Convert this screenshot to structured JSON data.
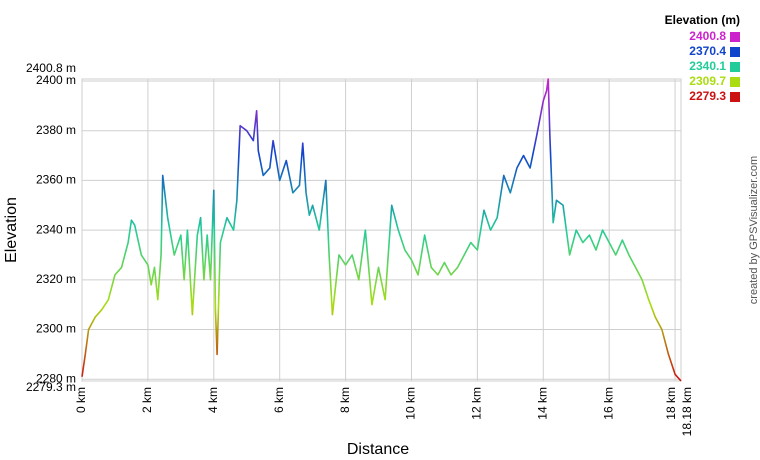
{
  "chart_data": {
    "type": "line",
    "x_label": "Distance",
    "y_label": "Elevation",
    "legend_title": "Elevation (m)",
    "credit": "created by GPSVisualizer.com",
    "grid": true,
    "xlim": [
      0,
      18.18
    ],
    "ylim": [
      2279.3,
      2400.8
    ],
    "xticks": [
      {
        "value": 0,
        "label": "0 km"
      },
      {
        "value": 2,
        "label": "2 km"
      },
      {
        "value": 4,
        "label": "4 km"
      },
      {
        "value": 6,
        "label": "6 km"
      },
      {
        "value": 8,
        "label": "8 km"
      },
      {
        "value": 10,
        "label": "10 km"
      },
      {
        "value": 12,
        "label": "12 km"
      },
      {
        "value": 14,
        "label": "14 km"
      },
      {
        "value": 16,
        "label": "16 km"
      },
      {
        "value": 18,
        "label": "18 km"
      },
      {
        "value": 18.18,
        "label": "18.18 km"
      }
    ],
    "yticks": [
      {
        "value": 2279.3,
        "label": "2279.3 m"
      },
      {
        "value": 2280,
        "label": "2280 m"
      },
      {
        "value": 2300,
        "label": "2300 m"
      },
      {
        "value": 2320,
        "label": "2320 m"
      },
      {
        "value": 2340,
        "label": "2340 m"
      },
      {
        "value": 2360,
        "label": "2360 m"
      },
      {
        "value": 2380,
        "label": "2380 m"
      },
      {
        "value": 2400,
        "label": "2400 m"
      },
      {
        "value": 2400.8,
        "label": "2400.8 m"
      }
    ],
    "color_scale": [
      {
        "value": 2400.8,
        "color": "#cc22cc"
      },
      {
        "value": 2370.4,
        "color": "#1144cc"
      },
      {
        "value": 2340.1,
        "color": "#22cc99"
      },
      {
        "value": 2309.7,
        "color": "#aadd11"
      },
      {
        "value": 2279.3,
        "color": "#cc1111"
      }
    ],
    "x": [
      0,
      0.1,
      0.2,
      0.4,
      0.6,
      0.8,
      1.0,
      1.2,
      1.4,
      1.5,
      1.6,
      1.8,
      2.0,
      2.1,
      2.2,
      2.3,
      2.4,
      2.45,
      2.6,
      2.8,
      3.0,
      3.1,
      3.2,
      3.35,
      3.5,
      3.6,
      3.7,
      3.8,
      3.9,
      4.0,
      4.05,
      4.1,
      4.2,
      4.4,
      4.6,
      4.7,
      4.8,
      5.0,
      5.2,
      5.3,
      5.35,
      5.5,
      5.7,
      5.8,
      6.0,
      6.2,
      6.4,
      6.6,
      6.7,
      6.8,
      6.9,
      7.0,
      7.2,
      7.4,
      7.5,
      7.6,
      7.8,
      8.0,
      8.2,
      8.4,
      8.6,
      8.8,
      9.0,
      9.2,
      9.4,
      9.6,
      9.8,
      10.0,
      10.2,
      10.4,
      10.6,
      10.8,
      11.0,
      11.2,
      11.4,
      11.6,
      11.8,
      12.0,
      12.2,
      12.4,
      12.6,
      12.8,
      13.0,
      13.2,
      13.4,
      13.6,
      13.8,
      14.0,
      14.1,
      14.15,
      14.2,
      14.3,
      14.4,
      14.6,
      14.8,
      15.0,
      15.2,
      15.4,
      15.6,
      15.8,
      16.0,
      16.2,
      16.4,
      16.6,
      16.8,
      17.0,
      17.2,
      17.4,
      17.6,
      17.8,
      18.0,
      18.18
    ],
    "values": [
      2281,
      2290,
      2300,
      2305,
      2308,
      2312,
      2322,
      2325,
      2335,
      2344,
      2342,
      2330,
      2326,
      2318,
      2325,
      2312,
      2330,
      2362,
      2345,
      2330,
      2338,
      2320,
      2340,
      2306,
      2338,
      2345,
      2320,
      2338,
      2320,
      2356,
      2308,
      2290,
      2335,
      2345,
      2340,
      2352,
      2382,
      2380,
      2376,
      2388,
      2372,
      2362,
      2365,
      2376,
      2360,
      2368,
      2355,
      2358,
      2375,
      2355,
      2346,
      2350,
      2340,
      2360,
      2330,
      2306,
      2330,
      2326,
      2330,
      2320,
      2340,
      2310,
      2325,
      2312,
      2350,
      2340,
      2332,
      2328,
      2322,
      2338,
      2325,
      2322,
      2327,
      2322,
      2325,
      2330,
      2335,
      2332,
      2348,
      2340,
      2345,
      2362,
      2355,
      2365,
      2370,
      2365,
      2378,
      2392,
      2396,
      2400.8,
      2378,
      2343,
      2352,
      2350,
      2330,
      2340,
      2335,
      2338,
      2332,
      2340,
      2335,
      2330,
      2336,
      2330,
      2325,
      2320,
      2312,
      2305,
      2300,
      2290,
      2282,
      2279.3
    ]
  }
}
